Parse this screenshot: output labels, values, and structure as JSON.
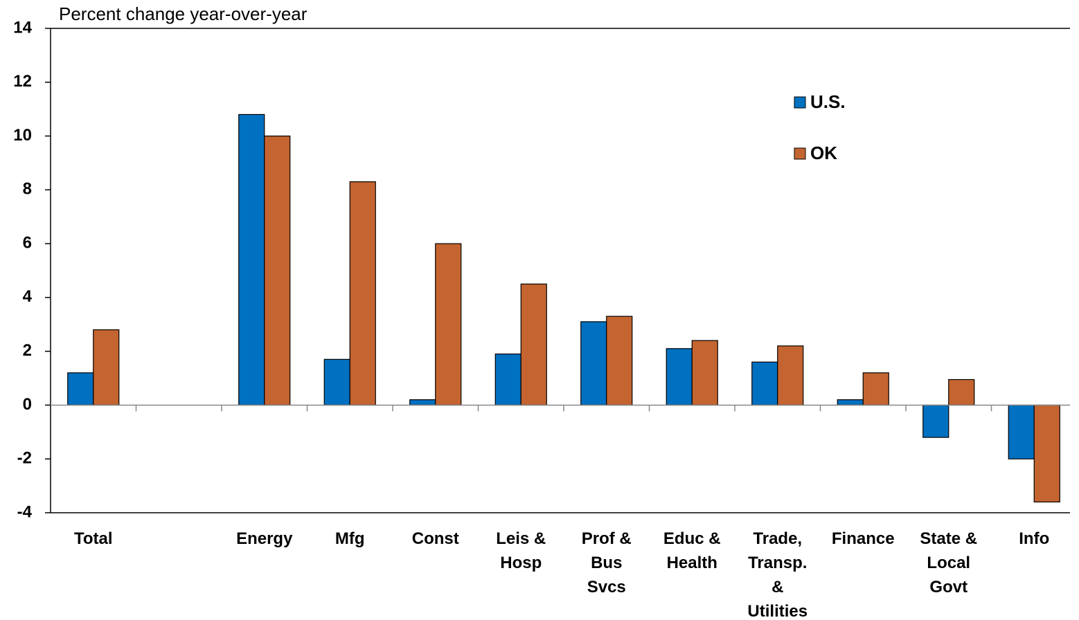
{
  "chart_data": {
    "type": "bar",
    "y_axis_label": "Percent change year-over-year",
    "categories": [
      "Total",
      null,
      "Energy",
      "Mfg",
      "Const",
      "Leis & Hosp",
      "Prof & Bus Svcs",
      "Educ & Health",
      "Trade, Transp. & Utilities",
      "Finance",
      "State & Local Govt",
      "Info"
    ],
    "series": [
      {
        "name": "U.S.",
        "color": "#0070c0",
        "values": [
          1.2,
          null,
          10.8,
          1.7,
          0.2,
          1.9,
          3.1,
          2.1,
          1.6,
          0.2,
          -1.2,
          -2.0
        ]
      },
      {
        "name": "OK",
        "color": "#c46430",
        "values": [
          2.8,
          null,
          10.0,
          8.3,
          6.0,
          4.5,
          3.3,
          2.4,
          2.2,
          1.2,
          0.95,
          -3.6
        ]
      }
    ],
    "ylim": [
      -4,
      14
    ],
    "yticks": [
      -4,
      -2,
      0,
      2,
      4,
      6,
      8,
      10,
      12,
      14
    ]
  }
}
